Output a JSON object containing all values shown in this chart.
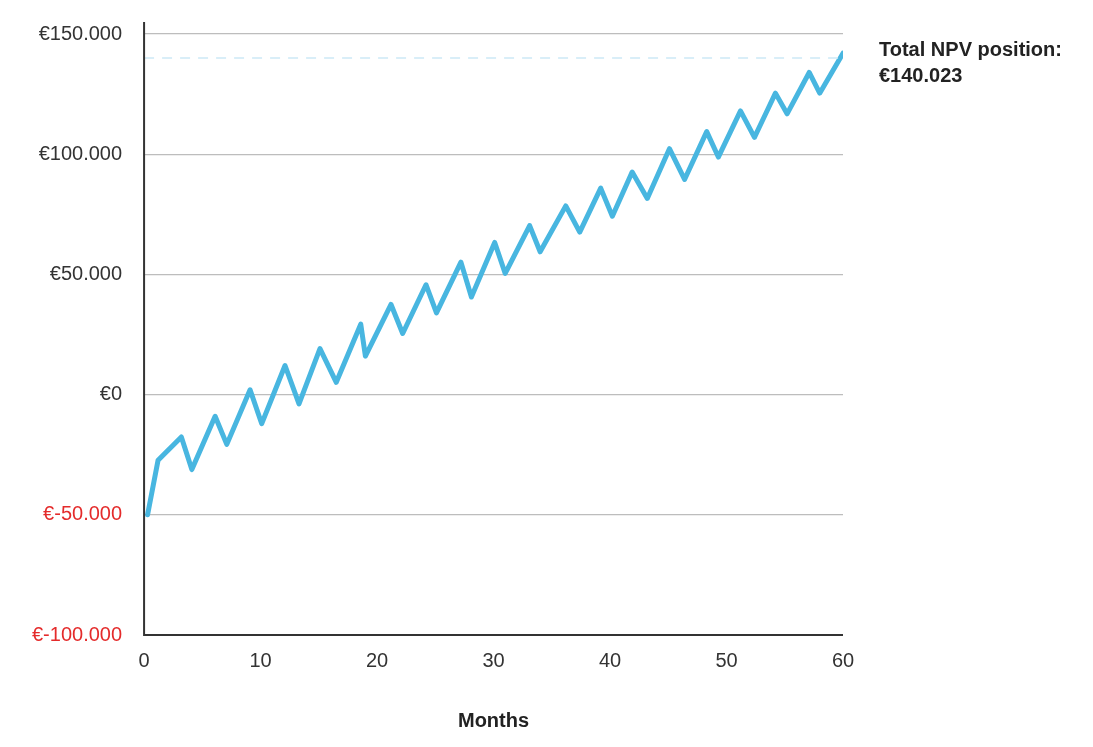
{
  "chart_data": {
    "type": "line",
    "xlabel": "Months",
    "x": [
      0.3,
      1.2,
      3.2,
      4.1,
      6.1,
      7.1,
      9.1,
      10.1,
      12.1,
      13.3,
      15.1,
      16.5,
      18.6,
      19.0,
      21.2,
      22.2,
      24.2,
      25.1,
      27.2,
      28.1,
      30.1,
      31.0,
      33.1,
      34.0,
      36.2,
      37.4,
      39.2,
      40.2,
      41.9,
      43.2,
      45.1,
      46.4,
      48.3,
      49.3,
      51.2,
      52.4,
      54.2,
      55.2,
      57.1,
      58.0,
      60.0
    ],
    "series": [
      {
        "color": "#48b6e0",
        "values": [
          -50000,
          -27300,
          -17600,
          -31200,
          -9000,
          -20700,
          2000,
          -12100,
          12100,
          -3900,
          19100,
          5100,
          29300,
          16000,
          37500,
          25400,
          45700,
          34000,
          55100,
          40600,
          63300,
          50400,
          70300,
          59400,
          78500,
          67600,
          85900,
          74200,
          92600,
          81600,
          102300,
          89500,
          109400,
          98800,
          118000,
          107000,
          125400,
          116800,
          134000,
          125400,
          142000
        ]
      }
    ],
    "xlim": [
      0,
      60
    ],
    "xticks": [
      0,
      10,
      20,
      30,
      40,
      50,
      60
    ],
    "ylim": [
      -100000,
      150000
    ],
    "yticks": [
      {
        "value": -100000,
        "label": "€-100.000"
      },
      {
        "value": -50000,
        "label": "€-50.000"
      },
      {
        "value": 0,
        "label": "€0"
      },
      {
        "value": 50000,
        "label": "€50.000"
      },
      {
        "value": 100000,
        "label": "€100.000"
      },
      {
        "value": 150000,
        "label": "€150.000"
      }
    ],
    "ref_lines": [
      {
        "axis": "y",
        "value": 140023,
        "label": "Total NPV position: €140.023",
        "color": "#cde9f6",
        "line_style": "dashed"
      }
    ],
    "grid": "y",
    "legend": false,
    "marker": "none",
    "line_style": "solid"
  }
}
